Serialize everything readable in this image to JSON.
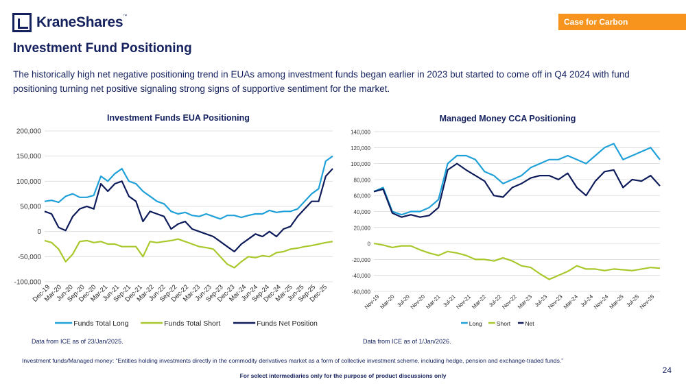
{
  "brand": {
    "name": "KraneShares",
    "trademark": "™"
  },
  "tag_label": "Case for Carbon",
  "page_title": "Investment Fund Positioning",
  "lead_text": "The historically high net negative positioning trend in EUAs among investment funds began earlier in 2023 but started to come off in Q4 2024 with fund positioning turning net positive signaling strong signs of supportive sentiment for the market.",
  "sources": {
    "left": "Data from ICE as of 23/Jan/2025.",
    "right": "Data from ICE as of 1/Jan/2026."
  },
  "footnote": "Investment funds/Managed money: “Entities holding investments directly in the commodity derivatives market as a form of collective investment scheme, including hedge, pension and exchange-traded funds.”",
  "disclaimer": "For select intermediaries only for the purpose of product discussions only",
  "page_number": "24",
  "colors": {
    "long": "#1fa0d8",
    "short": "#a8c82c",
    "net": "#0d1b5a",
    "accent": "#f7941d",
    "grid": "#d9d9d9",
    "brand": "#14215e"
  },
  "chart_data": [
    {
      "type": "line",
      "title": "Investment Funds EUA Positioning",
      "x_ticks": [
        "Dec-19",
        "Mar-20",
        "Jun-20",
        "Sep-20",
        "Dec-20",
        "Mar-21",
        "Jun-21",
        "Sep-21",
        "Dec-21",
        "Mar-22",
        "Jun-22",
        "Sep-22",
        "Dec-22",
        "Mar-23",
        "Jun-23",
        "Sep-23",
        "Dec-23",
        "Mar-24",
        "Jun-24",
        "Sep-24",
        "Dec-24",
        "Mar-25",
        "Jun-25",
        "Sep-25",
        "Dec-25"
      ],
      "y_ticks": [
        200000,
        150000,
        100000,
        50000,
        0,
        -50000,
        -100000
      ],
      "y_tick_labels": [
        "200,000",
        "150,000",
        "100,000",
        "50,000",
        "0",
        "-50,000",
        "-100,000"
      ],
      "ylim": [
        -100000,
        200000
      ],
      "grid": "horizontal",
      "legend_position": "bottom",
      "series": [
        {
          "name": "Funds Total Long",
          "color_key": "long",
          "values": [
            60000,
            62000,
            58000,
            70000,
            75000,
            68000,
            68000,
            72000,
            110000,
            100000,
            115000,
            125000,
            100000,
            95000,
            80000,
            70000,
            60000,
            55000,
            40000,
            35000,
            38000,
            32000,
            30000,
            35000,
            30000,
            25000,
            32000,
            32000,
            28000,
            32000,
            35000,
            35000,
            42000,
            38000,
            40000,
            40000,
            45000,
            60000,
            75000,
            85000,
            140000,
            150000
          ]
        },
        {
          "name": "Funds Total Short",
          "color_key": "short",
          "values": [
            -18000,
            -22000,
            -35000,
            -60000,
            -45000,
            -20000,
            -18000,
            -22000,
            -20000,
            -25000,
            -25000,
            -30000,
            -30000,
            -30000,
            -50000,
            -20000,
            -22000,
            -20000,
            -18000,
            -15000,
            -20000,
            -25000,
            -30000,
            -32000,
            -35000,
            -50000,
            -65000,
            -72000,
            -60000,
            -50000,
            -52000,
            -48000,
            -50000,
            -42000,
            -40000,
            -35000,
            -33000,
            -30000,
            -28000,
            -25000,
            -22000,
            -20000
          ]
        },
        {
          "name": "Funds Net Position",
          "color_key": "net",
          "values": [
            40000,
            35000,
            8000,
            2000,
            30000,
            45000,
            50000,
            45000,
            95000,
            80000,
            95000,
            100000,
            70000,
            60000,
            20000,
            40000,
            35000,
            30000,
            5000,
            15000,
            20000,
            5000,
            0,
            -5000,
            -10000,
            -20000,
            -30000,
            -40000,
            -25000,
            -15000,
            -5000,
            -10000,
            0,
            -10000,
            5000,
            10000,
            30000,
            45000,
            60000,
            60000,
            110000,
            125000
          ]
        }
      ]
    },
    {
      "type": "line",
      "title": "Managed Money CCA Positioning",
      "x_ticks": [
        "Nov-19",
        "Mar-20",
        "Jul-20",
        "Nov-20",
        "Mar-21",
        "Jul-21",
        "Nov-21",
        "Mar-22",
        "Jul-22",
        "Nov-22",
        "Mar-23",
        "Jul-23",
        "Nov-23",
        "Mar-24",
        "Jul-24",
        "Nov-24",
        "Mar-25",
        "Jul-25",
        "Nov-25"
      ],
      "y_ticks": [
        140000,
        120000,
        100000,
        80000,
        60000,
        40000,
        20000,
        0,
        -20000,
        -40000,
        -60000
      ],
      "y_tick_labels": [
        "140,000",
        "120,000",
        "100,000",
        "80,000",
        "60,000",
        "40,000",
        "20,000",
        "0",
        "-20,000",
        "-40,000",
        "-60,000"
      ],
      "ylim": [
        -60000,
        140000
      ],
      "grid": "horizontal",
      "legend_position": "bottom",
      "series": [
        {
          "name": "Long",
          "color_key": "long",
          "values": [
            65000,
            70000,
            40000,
            36000,
            40000,
            40000,
            45000,
            55000,
            100000,
            110000,
            110000,
            105000,
            90000,
            85000,
            75000,
            80000,
            85000,
            95000,
            100000,
            105000,
            105000,
            110000,
            105000,
            100000,
            110000,
            120000,
            125000,
            105000,
            110000,
            115000,
            120000,
            105000
          ]
        },
        {
          "name": "Short",
          "color_key": "short",
          "values": [
            0,
            -2000,
            -5000,
            -3000,
            -3000,
            -8000,
            -12000,
            -15000,
            -10000,
            -12000,
            -15000,
            -20000,
            -20000,
            -22000,
            -18000,
            -22000,
            -28000,
            -30000,
            -38000,
            -45000,
            -40000,
            -35000,
            -28000,
            -32000,
            -32000,
            -34000,
            -32000,
            -33000,
            -34000,
            -32000,
            -30000,
            -31000
          ]
        },
        {
          "name": "Net",
          "color_key": "net",
          "values": [
            65000,
            68000,
            38000,
            33000,
            36000,
            33000,
            35000,
            45000,
            92000,
            100000,
            92000,
            85000,
            78000,
            60000,
            58000,
            70000,
            75000,
            82000,
            85000,
            85000,
            80000,
            88000,
            70000,
            60000,
            78000,
            90000,
            92000,
            70000,
            80000,
            78000,
            85000,
            72000
          ]
        }
      ]
    }
  ]
}
